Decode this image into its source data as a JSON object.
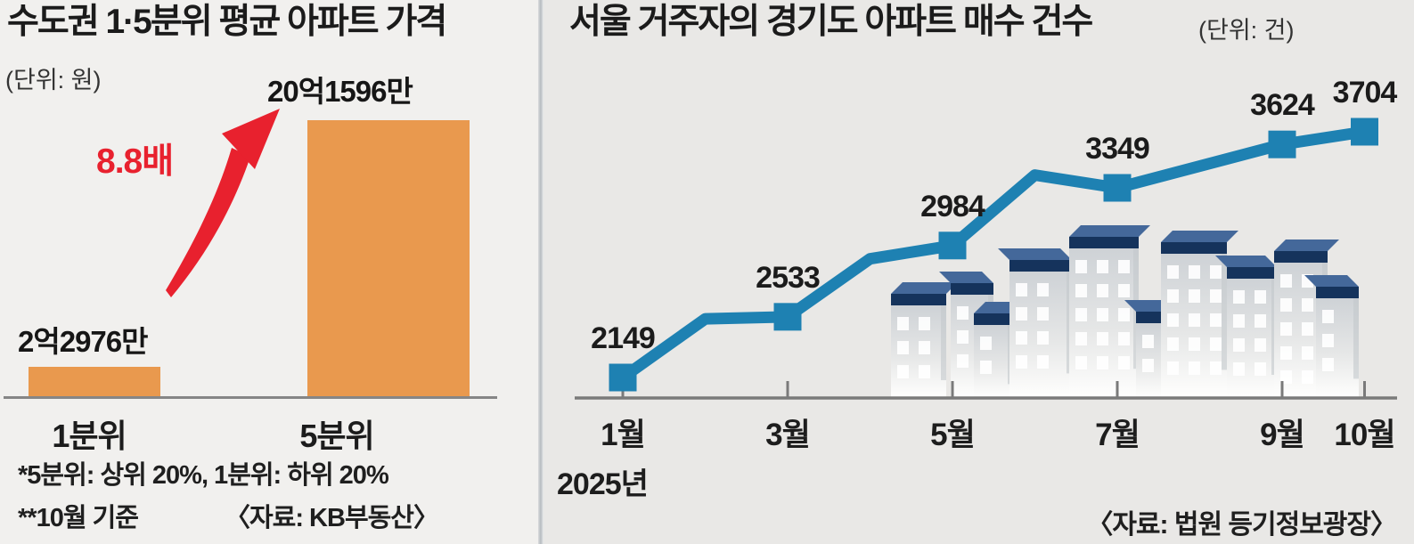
{
  "chart_data": [
    {
      "id": "metro-quintile-apartment-price",
      "type": "bar",
      "title": "수도권 1·5분위 평균 아파트 가격",
      "unit_label": "(단위: 원)",
      "categories": [
        "1분위",
        "5분위"
      ],
      "values": [
        22976,
        201596
      ],
      "value_unit": "만원",
      "value_labels": [
        "2억2976만",
        "20억1596만"
      ],
      "annotation": "8.8배",
      "annotation_color": "#e8212e",
      "footnotes": [
        "*5분위: 상위 20%, 1분위: 하위 20%",
        "**10월 기준"
      ],
      "source": "〈자료: KB부동산〉",
      "bar_color": "#e9994e",
      "ylim": [
        0,
        201596
      ],
      "grid": false
    },
    {
      "id": "seoul-residents-gyeonggi-apartment-purchases",
      "type": "line",
      "title": "서울 거주자의 경기도 아파트 매수 건수",
      "unit_label": "(단위: 건)",
      "x_labels": [
        "1월",
        "3월",
        "5월",
        "7월",
        "9월",
        "10월"
      ],
      "x_months_numeric": [
        1,
        3,
        5,
        7,
        9,
        10
      ],
      "values": [
        2149,
        2533,
        2984,
        3349,
        3624,
        3704
      ],
      "unlabeled_line_points_estimated": [
        {
          "month": 2,
          "value": 2520
        },
        {
          "month": 4,
          "value": 2900
        },
        {
          "month": 6,
          "value": 3430
        }
      ],
      "year_label": "2025년",
      "source": "〈자료: 법원 등기정보광장〉",
      "line_color": "#1e81b2",
      "grid": false,
      "legend": "none"
    }
  ]
}
